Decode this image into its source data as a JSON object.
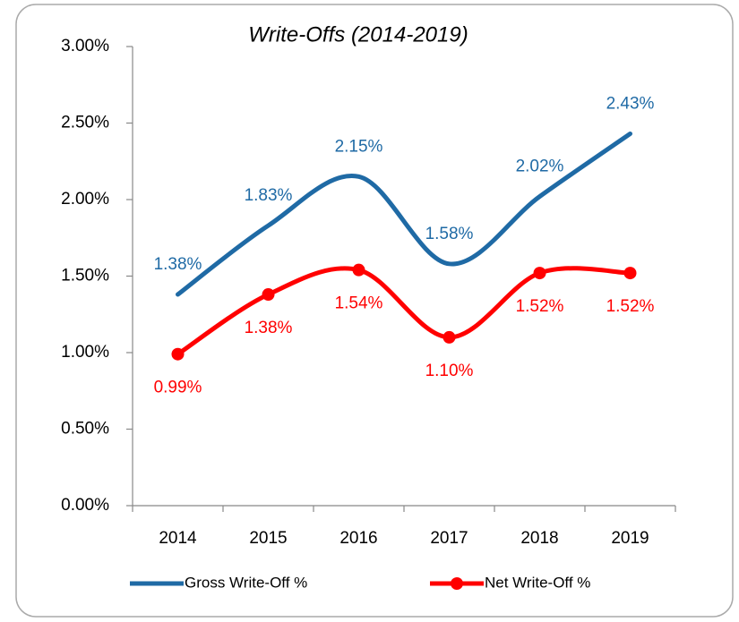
{
  "chart_data": {
    "type": "line",
    "title": "Write-Offs (2014-2019)",
    "categories": [
      "2014",
      "2015",
      "2016",
      "2017",
      "2018",
      "2019"
    ],
    "series": [
      {
        "name": "Gross Write-Off %",
        "color": "#1f6aa5",
        "values": [
          1.38,
          1.83,
          2.15,
          1.58,
          2.02,
          2.43
        ],
        "value_labels": [
          "1.38%",
          "1.83%",
          "2.15%",
          "1.58%",
          "2.02%",
          "2.43%"
        ],
        "marker": false,
        "label_position": "above"
      },
      {
        "name": "Net Write-Off %",
        "color": "#ff0000",
        "values": [
          0.99,
          1.38,
          1.54,
          1.1,
          1.52,
          1.52
        ],
        "value_labels": [
          "0.99%",
          "1.38%",
          "1.54%",
          "1.10%",
          "1.52%",
          "1.52%"
        ],
        "marker": true,
        "label_position": "below"
      }
    ],
    "ylim": [
      0,
      3
    ],
    "yticks": [
      {
        "value": 0,
        "label": "0.00%"
      },
      {
        "value": 0.5,
        "label": "0.50%"
      },
      {
        "value": 1,
        "label": "1.00%"
      },
      {
        "value": 1.5,
        "label": "1.50%"
      },
      {
        "value": 2,
        "label": "2.00%"
      },
      {
        "value": 2.5,
        "label": "2.50%"
      },
      {
        "value": 3,
        "label": "3.00%"
      }
    ],
    "grid": false,
    "smooth": true,
    "legend": "bottom"
  }
}
